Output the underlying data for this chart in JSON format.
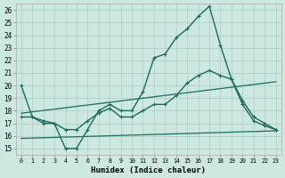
{
  "title": "",
  "xlabel": "Humidex (Indice chaleur)",
  "bg_color": "#cce8e0",
  "grid_color": "#aaccc4",
  "line_color": "#1a6b5e",
  "xlim": [
    -0.5,
    23.5
  ],
  "ylim": [
    14.5,
    26.5
  ],
  "yticks": [
    15,
    16,
    17,
    18,
    19,
    20,
    21,
    22,
    23,
    24,
    25,
    26
  ],
  "xticks": [
    0,
    1,
    2,
    3,
    4,
    5,
    6,
    7,
    8,
    9,
    10,
    11,
    12,
    13,
    14,
    15,
    16,
    17,
    18,
    19,
    20,
    21,
    22,
    23
  ],
  "series": [
    {
      "x": [
        0,
        1,
        2,
        3,
        4,
        5,
        6,
        7,
        8,
        9,
        10,
        11,
        12,
        13,
        14,
        15,
        16,
        17,
        18,
        19,
        20,
        21,
        22,
        23
      ],
      "y": [
        20,
        17.5,
        17,
        17,
        15,
        15,
        16.5,
        18,
        18.5,
        18,
        18,
        19.5,
        22.2,
        22.5,
        23.8,
        24.5,
        25.5,
        26.3,
        23.2,
        20.5,
        18.5,
        17.2,
        16.8,
        16.5
      ],
      "marker": true,
      "markersize": 2.5,
      "linewidth": 1.0
    },
    {
      "x": [
        0,
        1,
        2,
        3,
        4,
        5,
        6,
        7,
        8,
        9,
        10,
        11,
        12,
        13,
        14,
        15,
        16,
        17,
        18,
        19,
        20,
        21,
        22,
        23
      ],
      "y": [
        17.5,
        17.5,
        17.2,
        17.0,
        16.5,
        16.5,
        17.2,
        17.8,
        18.2,
        17.5,
        17.5,
        18.0,
        18.5,
        18.5,
        19.2,
        20.2,
        20.8,
        21.2,
        20.8,
        20.5,
        18.8,
        17.5,
        17.0,
        16.5
      ],
      "marker": true,
      "markersize": 2.5,
      "linewidth": 1.0
    },
    {
      "x": [
        0,
        23
      ],
      "y": [
        17.8,
        20.3
      ],
      "marker": false,
      "markersize": 0,
      "linewidth": 0.9
    },
    {
      "x": [
        0,
        23
      ],
      "y": [
        15.8,
        16.4
      ],
      "marker": false,
      "markersize": 0,
      "linewidth": 0.9
    }
  ]
}
